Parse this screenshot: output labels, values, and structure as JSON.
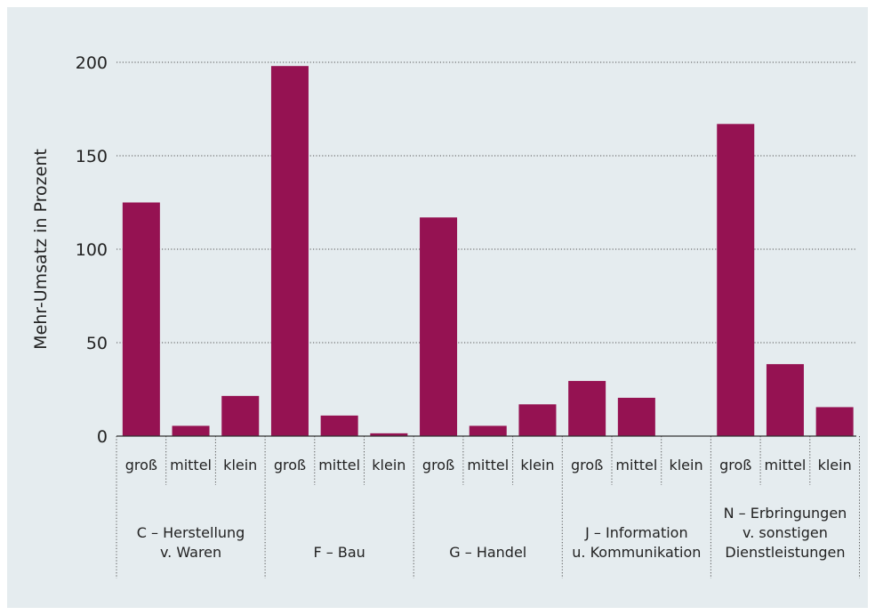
{
  "chart_data": {
    "type": "bar",
    "ylabel": "Mehr-Umsatz in Prozent",
    "ylim": [
      0,
      200
    ],
    "yticks": [
      0,
      50,
      100,
      150,
      200
    ],
    "grid": true,
    "groups": [
      {
        "label_lines": [
          "C – Herstellung",
          "v. Waren"
        ],
        "categories": [
          "groß",
          "mittel",
          "klein"
        ],
        "values": [
          125,
          5.5,
          21.5
        ]
      },
      {
        "label_lines": [
          "F – Bau"
        ],
        "categories": [
          "groß",
          "mittel",
          "klein"
        ],
        "values": [
          198,
          11,
          1.5
        ]
      },
      {
        "label_lines": [
          "G – Handel"
        ],
        "categories": [
          "groß",
          "mittel",
          "klein"
        ],
        "values": [
          117,
          5.5,
          17
        ]
      },
      {
        "label_lines": [
          "J – Information",
          "u. Kommunikation"
        ],
        "categories": [
          "groß",
          "mittel",
          "klein"
        ],
        "values": [
          29.5,
          20.5,
          0
        ]
      },
      {
        "label_lines": [
          "N – Erbringungen",
          "v. sonstigen",
          "Dienstleistungen"
        ],
        "categories": [
          "groß",
          "mittel",
          "klein"
        ],
        "values": [
          167,
          38.5,
          15.5
        ]
      }
    ],
    "colors": {
      "bar": "#951252",
      "background": "#e5ecef",
      "grid": "#555555",
      "axis": "#333333"
    }
  }
}
